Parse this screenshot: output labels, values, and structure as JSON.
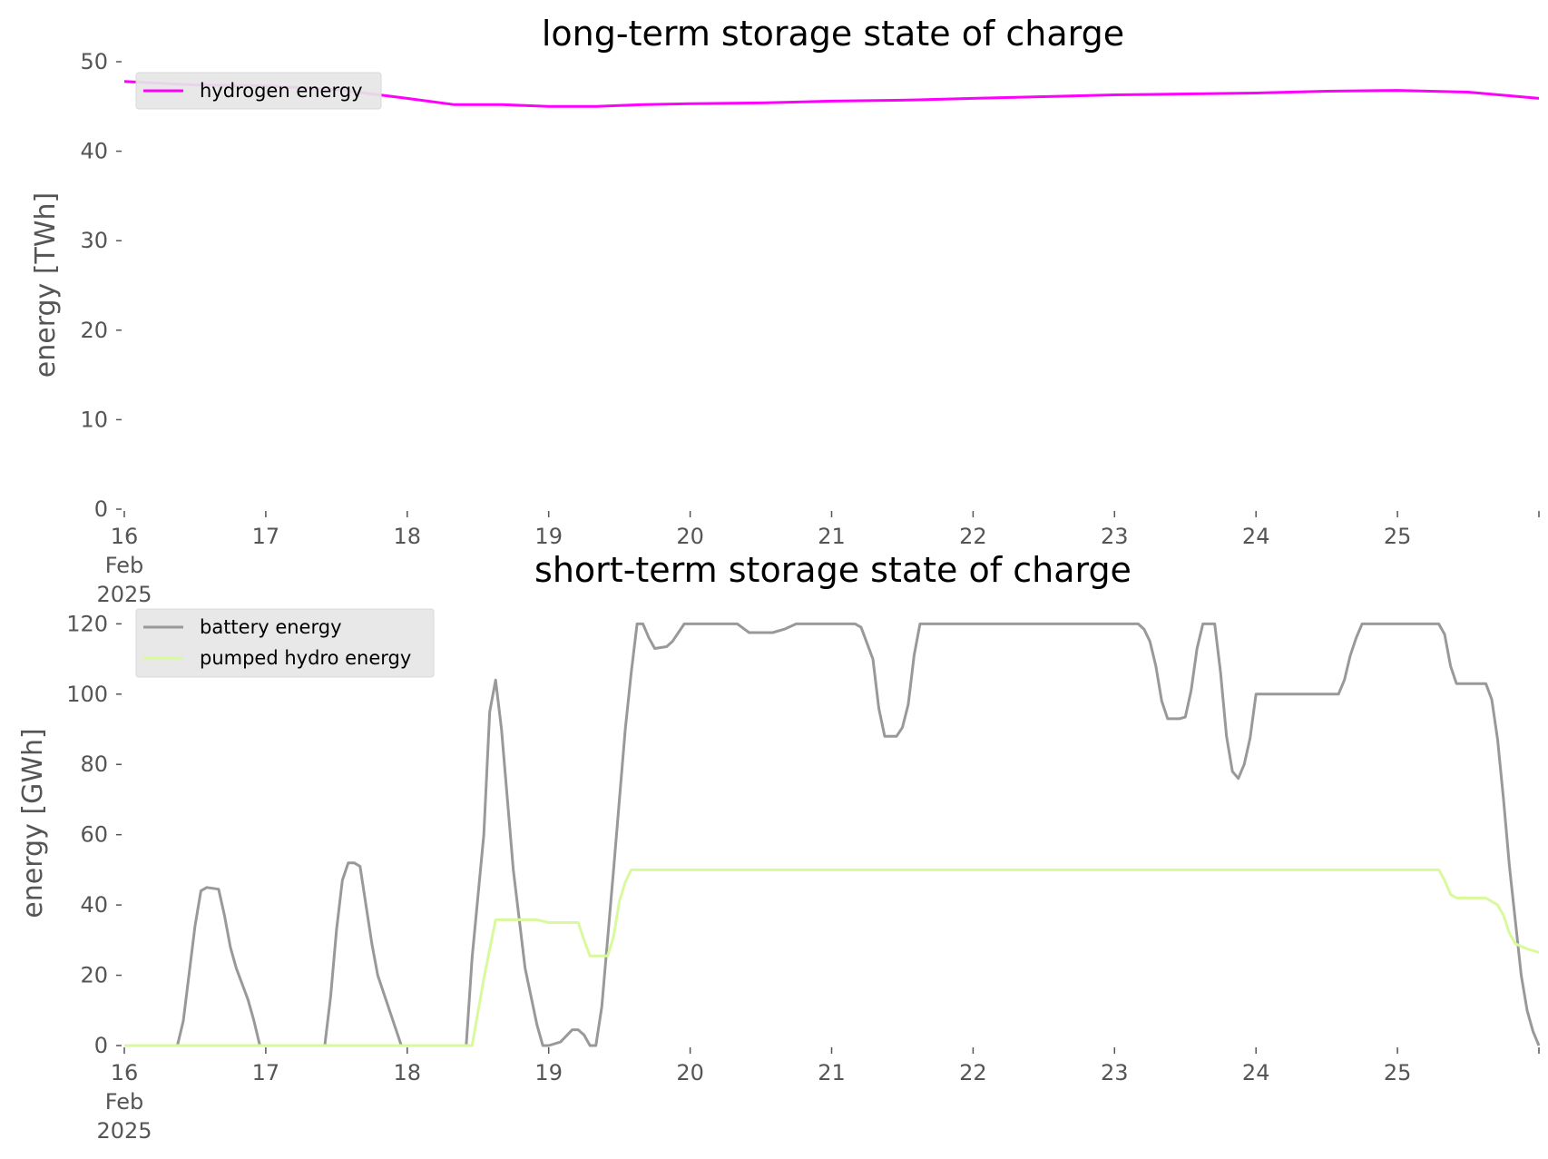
{
  "chart_data": [
    {
      "type": "line",
      "title": "long-term storage state of charge",
      "xlabel": "",
      "ylabel": "energy [TWh]",
      "ylim": [
        0,
        50
      ],
      "yticks": [
        0,
        10,
        20,
        30,
        40,
        50
      ],
      "xlim": [
        "2025-02-16",
        "2025-02-26"
      ],
      "xticks": [
        {
          "value": "2025-02-16",
          "label": "16",
          "sublabel": "Feb",
          "sublabel2": "2025"
        },
        {
          "value": "2025-02-17",
          "label": "17"
        },
        {
          "value": "2025-02-18",
          "label": "18"
        },
        {
          "value": "2025-02-19",
          "label": "19"
        },
        {
          "value": "2025-02-20",
          "label": "20"
        },
        {
          "value": "2025-02-21",
          "label": "21"
        },
        {
          "value": "2025-02-22",
          "label": "22"
        },
        {
          "value": "2025-02-23",
          "label": "23"
        },
        {
          "value": "2025-02-24",
          "label": "24"
        },
        {
          "value": "2025-02-25",
          "label": "25"
        }
      ],
      "grid": false,
      "legend_position": "upper-left",
      "series": [
        {
          "name": "hydrogen energy",
          "color": "#ff00ff",
          "points": [
            [
              "2025-02-16T00:00",
              47.8
            ],
            [
              "2025-02-16T12:00",
              47.4
            ],
            [
              "2025-02-17T00:00",
              47.3
            ],
            [
              "2025-02-17T12:00",
              46.9
            ],
            [
              "2025-02-18T00:00",
              45.9
            ],
            [
              "2025-02-18T08:00",
              45.2
            ],
            [
              "2025-02-18T16:00",
              45.2
            ],
            [
              "2025-02-19T00:00",
              45.0
            ],
            [
              "2025-02-19T08:00",
              45.0
            ],
            [
              "2025-02-19T16:00",
              45.2
            ],
            [
              "2025-02-20T00:00",
              45.3
            ],
            [
              "2025-02-20T12:00",
              45.4
            ],
            [
              "2025-02-21T00:00",
              45.6
            ],
            [
              "2025-02-21T12:00",
              45.7
            ],
            [
              "2025-02-22T00:00",
              45.9
            ],
            [
              "2025-02-22T12:00",
              46.1
            ],
            [
              "2025-02-23T00:00",
              46.3
            ],
            [
              "2025-02-23T12:00",
              46.4
            ],
            [
              "2025-02-24T00:00",
              46.5
            ],
            [
              "2025-02-24T12:00",
              46.7
            ],
            [
              "2025-02-25T00:00",
              46.8
            ],
            [
              "2025-02-25T12:00",
              46.6
            ],
            [
              "2025-02-26T00:00",
              45.9
            ]
          ]
        }
      ]
    },
    {
      "type": "line",
      "title": "short-term storage state of charge",
      "xlabel": "",
      "ylabel": "energy [GWh]",
      "ylim": [
        0,
        125
      ],
      "yticks": [
        0,
        20,
        40,
        60,
        80,
        100,
        120
      ],
      "xlim": [
        "2025-02-16",
        "2025-02-26"
      ],
      "xticks": [
        {
          "value": "2025-02-16",
          "label": "16",
          "sublabel": "Feb",
          "sublabel2": "2025"
        },
        {
          "value": "2025-02-17",
          "label": "17"
        },
        {
          "value": "2025-02-18",
          "label": "18"
        },
        {
          "value": "2025-02-19",
          "label": "19"
        },
        {
          "value": "2025-02-20",
          "label": "20"
        },
        {
          "value": "2025-02-21",
          "label": "21"
        },
        {
          "value": "2025-02-22",
          "label": "22"
        },
        {
          "value": "2025-02-23",
          "label": "23"
        },
        {
          "value": "2025-02-24",
          "label": "24"
        },
        {
          "value": "2025-02-25",
          "label": "25"
        }
      ],
      "grid": false,
      "legend_position": "upper-left",
      "series": [
        {
          "name": "battery energy",
          "color": "#999999",
          "points": [
            [
              "2025-02-16T00:00",
              0
            ],
            [
              "2025-02-16T09:00",
              0
            ],
            [
              "2025-02-16T10:00",
              7
            ],
            [
              "2025-02-16T12:00",
              34
            ],
            [
              "2025-02-16T13:00",
              44
            ],
            [
              "2025-02-16T14:00",
              45
            ],
            [
              "2025-02-16T16:00",
              44.5
            ],
            [
              "2025-02-16T17:00",
              37
            ],
            [
              "2025-02-16T18:00",
              28
            ],
            [
              "2025-02-16T19:00",
              22
            ],
            [
              "2025-02-16T21:00",
              13
            ],
            [
              "2025-02-16T22:00",
              7
            ],
            [
              "2025-02-16T23:00",
              0
            ],
            [
              "2025-02-17T10:00",
              0
            ],
            [
              "2025-02-17T11:00",
              14
            ],
            [
              "2025-02-17T12:00",
              33
            ],
            [
              "2025-02-17T13:00",
              47
            ],
            [
              "2025-02-17T14:00",
              52
            ],
            [
              "2025-02-17T15:00",
              52
            ],
            [
              "2025-02-17T16:00",
              51
            ],
            [
              "2025-02-17T17:00",
              40
            ],
            [
              "2025-02-17T18:00",
              29
            ],
            [
              "2025-02-17T19:00",
              20
            ],
            [
              "2025-02-17T21:00",
              10
            ],
            [
              "2025-02-17T23:00",
              0
            ],
            [
              "2025-02-18T09:00",
              0
            ],
            [
              "2025-02-18T10:00",
              0
            ],
            [
              "2025-02-18T11:00",
              25
            ],
            [
              "2025-02-18T13:00",
              60
            ],
            [
              "2025-02-18T14:00",
              95
            ],
            [
              "2025-02-18T15:00",
              104
            ],
            [
              "2025-02-18T16:00",
              90
            ],
            [
              "2025-02-18T18:00",
              50
            ],
            [
              "2025-02-18T20:00",
              22
            ],
            [
              "2025-02-18T22:00",
              6
            ],
            [
              "2025-02-18T23:00",
              0
            ],
            [
              "2025-02-19T00:00",
              0
            ],
            [
              "2025-02-19T02:00",
              1
            ],
            [
              "2025-02-19T04:00",
              4.5
            ],
            [
              "2025-02-19T05:00",
              4.5
            ],
            [
              "2025-02-19T06:00",
              3
            ],
            [
              "2025-02-19T07:00",
              0
            ],
            [
              "2025-02-19T08:00",
              0
            ],
            [
              "2025-02-19T09:00",
              11
            ],
            [
              "2025-02-19T11:00",
              50
            ],
            [
              "2025-02-19T13:00",
              90
            ],
            [
              "2025-02-19T14:00",
              106
            ],
            [
              "2025-02-19T15:00",
              120
            ],
            [
              "2025-02-19T16:00",
              120
            ],
            [
              "2025-02-19T17:00",
              116
            ],
            [
              "2025-02-19T18:00",
              113
            ],
            [
              "2025-02-19T20:00",
              113.5
            ],
            [
              "2025-02-19T21:00",
              115
            ],
            [
              "2025-02-19T23:00",
              120
            ],
            [
              "2025-02-20T08:00",
              120
            ],
            [
              "2025-02-20T10:00",
              117.5
            ],
            [
              "2025-02-20T14:00",
              117.5
            ],
            [
              "2025-02-20T16:00",
              118.5
            ],
            [
              "2025-02-20T18:00",
              120
            ],
            [
              "2025-02-21T04:00",
              120
            ],
            [
              "2025-02-21T05:00",
              119
            ],
            [
              "2025-02-21T07:00",
              110
            ],
            [
              "2025-02-21T08:00",
              96
            ],
            [
              "2025-02-21T09:00",
              88
            ],
            [
              "2025-02-21T11:00",
              88
            ],
            [
              "2025-02-21T12:00",
              90.5
            ],
            [
              "2025-02-21T13:00",
              97
            ],
            [
              "2025-02-21T14:00",
              111
            ],
            [
              "2025-02-21T15:00",
              120
            ],
            [
              "2025-02-23T04:00",
              120
            ],
            [
              "2025-02-23T05:00",
              118.5
            ],
            [
              "2025-02-23T06:00",
              115
            ],
            [
              "2025-02-23T07:00",
              108
            ],
            [
              "2025-02-23T08:00",
              98
            ],
            [
              "2025-02-23T09:00",
              93
            ],
            [
              "2025-02-23T11:00",
              93
            ],
            [
              "2025-02-23T12:00",
              93.5
            ],
            [
              "2025-02-23T13:00",
              101
            ],
            [
              "2025-02-23T14:00",
              113
            ],
            [
              "2025-02-23T15:00",
              120
            ],
            [
              "2025-02-23T17:00",
              120
            ],
            [
              "2025-02-23T18:00",
              106
            ],
            [
              "2025-02-23T19:00",
              88
            ],
            [
              "2025-02-23T20:00",
              78
            ],
            [
              "2025-02-23T21:00",
              76
            ],
            [
              "2025-02-23T22:00",
              80
            ],
            [
              "2025-02-23T23:00",
              87.5
            ],
            [
              "2025-02-24T00:00",
              100
            ],
            [
              "2025-02-24T14:00",
              100
            ],
            [
              "2025-02-24T15:00",
              104
            ],
            [
              "2025-02-24T16:00",
              111
            ],
            [
              "2025-02-24T17:00",
              116
            ],
            [
              "2025-02-24T18:00",
              120
            ],
            [
              "2025-02-25T07:00",
              120
            ],
            [
              "2025-02-25T08:00",
              117
            ],
            [
              "2025-02-25T09:00",
              108
            ],
            [
              "2025-02-25T10:00",
              103
            ],
            [
              "2025-02-25T15:00",
              103
            ],
            [
              "2025-02-25T16:00",
              98.5
            ],
            [
              "2025-02-25T17:00",
              87
            ],
            [
              "2025-02-25T18:00",
              70
            ],
            [
              "2025-02-25T19:00",
              51
            ],
            [
              "2025-02-25T21:00",
              20
            ],
            [
              "2025-02-25T22:00",
              10
            ],
            [
              "2025-02-25T23:00",
              4
            ],
            [
              "2025-02-26T00:00",
              0
            ]
          ]
        },
        {
          "name": "pumped hydro energy",
          "color": "#d9f99d",
          "points": [
            [
              "2025-02-16T00:00",
              0
            ],
            [
              "2025-02-18T11:00",
              0
            ],
            [
              "2025-02-18T13:00",
              19
            ],
            [
              "2025-02-18T15:00",
              35.8
            ],
            [
              "2025-02-18T21:00",
              35.8
            ],
            [
              "2025-02-18T22:00",
              35.8
            ],
            [
              "2025-02-19T00:00",
              35
            ],
            [
              "2025-02-19T05:00",
              35
            ],
            [
              "2025-02-19T06:00",
              30
            ],
            [
              "2025-02-19T07:00",
              25.5
            ],
            [
              "2025-02-19T10:00",
              25.5
            ],
            [
              "2025-02-19T11:00",
              31
            ],
            [
              "2025-02-19T12:00",
              41
            ],
            [
              "2025-02-19T13:00",
              46.5
            ],
            [
              "2025-02-19T14:00",
              50
            ],
            [
              "2025-02-25T07:00",
              50
            ],
            [
              "2025-02-25T08:00",
              47
            ],
            [
              "2025-02-25T09:00",
              43
            ],
            [
              "2025-02-25T10:00",
              42
            ],
            [
              "2025-02-25T15:00",
              42
            ],
            [
              "2025-02-25T17:00",
              40
            ],
            [
              "2025-02-25T18:00",
              37
            ],
            [
              "2025-02-25T19:00",
              32
            ],
            [
              "2025-02-25T20:00",
              29
            ],
            [
              "2025-02-25T22:00",
              27.5
            ],
            [
              "2025-02-26T00:00",
              26.5
            ]
          ]
        }
      ]
    }
  ]
}
